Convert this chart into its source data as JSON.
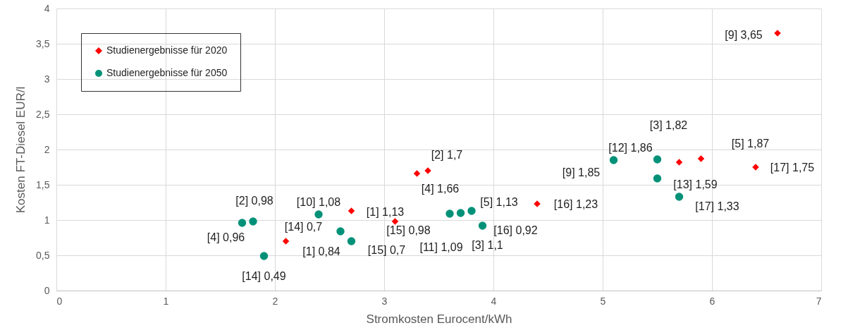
{
  "chart_data": {
    "type": "scatter",
    "xlabel": "Stromkosten Eurocent/kWh",
    "ylabel": "Kosten FT-Diesel EUR/l",
    "xlim": [
      0,
      7
    ],
    "xticks": [
      0,
      1,
      2,
      3,
      4,
      5,
      6,
      7
    ],
    "ylim": [
      0,
      4
    ],
    "yticks": [
      0,
      {
        "value": 0.5,
        "label": "0,5"
      },
      1,
      {
        "value": 1.5,
        "label": "1,5"
      },
      2,
      {
        "value": 2.5,
        "label": "2,5"
      },
      3,
      {
        "value": 3.5,
        "label": "3,5"
      },
      4
    ],
    "grid": true,
    "legend": "top left",
    "series": [
      {
        "name": "Studienergebnisse für 2020",
        "color": "#ff0000",
        "marker": "diamond",
        "x": [
          6.6,
          5.7,
          5.9,
          6.4,
          4.4,
          3.4,
          3.3,
          2.7,
          3.1,
          2.1
        ],
        "values": [
          3.65,
          1.82,
          1.87,
          1.75,
          1.23,
          1.7,
          1.66,
          1.13,
          0.98,
          0.7
        ]
      },
      {
        "name": "Studienergebnisse für 2050",
        "color": "#009178",
        "marker": "circle",
        "x": [
          5.1,
          5.5,
          5.5,
          5.7,
          3.9,
          3.8,
          3.7,
          3.6,
          2.7,
          2.6,
          2.4,
          1.8,
          1.7,
          1.9
        ],
        "values": [
          1.85,
          1.86,
          1.59,
          1.33,
          0.92,
          1.13,
          1.1,
          1.09,
          0.7,
          0.84,
          1.08,
          0.98,
          0.96,
          0.49
        ]
      }
    ],
    "annotations": [
      {
        "text": "[9] 3,65",
        "x": 6.6,
        "y": 3.65
      },
      {
        "text": "[3] 1,82",
        "x": 5.7,
        "y": 1.82
      },
      {
        "text": "[5] 1,87",
        "x": 5.9,
        "y": 1.87
      },
      {
        "text": "[17] 1,75",
        "x": 6.4,
        "y": 1.75
      },
      {
        "text": "[16] 1,23",
        "x": 4.4,
        "y": 1.23
      },
      {
        "text": "[2] 1,7",
        "x": 3.4,
        "y": 1.7
      },
      {
        "text": "[4] 1,66",
        "x": 3.3,
        "y": 1.66
      },
      {
        "text": "[1] 1,13",
        "x": 2.7,
        "y": 1.13
      },
      {
        "text": "[15] 0,98",
        "x": 3.1,
        "y": 0.98
      },
      {
        "text": "[14] 0,7",
        "x": 2.1,
        "y": 0.7
      },
      {
        "text": "[9] 1,85",
        "x": 5.1,
        "y": 1.85
      },
      {
        "text": "[12] 1,86",
        "x": 5.5,
        "y": 1.86
      },
      {
        "text": "[13] 1,59",
        "x": 5.5,
        "y": 1.59
      },
      {
        "text": "[17] 1,33",
        "x": 5.7,
        "y": 1.33
      },
      {
        "text": "[16] 0,92",
        "x": 3.9,
        "y": 0.92
      },
      {
        "text": "[5] 1,13",
        "x": 3.8,
        "y": 1.13
      },
      {
        "text": "[3] 1,1",
        "x": 3.7,
        "y": 1.1
      },
      {
        "text": "[11] 1,09",
        "x": 3.6,
        "y": 1.09
      },
      {
        "text": "[15] 0,7",
        "x": 2.7,
        "y": 0.7
      },
      {
        "text": "[1] 0,84",
        "x": 2.6,
        "y": 0.84
      },
      {
        "text": "[10] 1,08",
        "x": 2.4,
        "y": 1.08
      },
      {
        "text": "[2] 0,98",
        "x": 1.8,
        "y": 0.98
      },
      {
        "text": "[4] 0,96",
        "x": 1.7,
        "y": 0.96
      },
      {
        "text": "[14] 0,49",
        "x": 1.9,
        "y": 0.49
      }
    ]
  }
}
